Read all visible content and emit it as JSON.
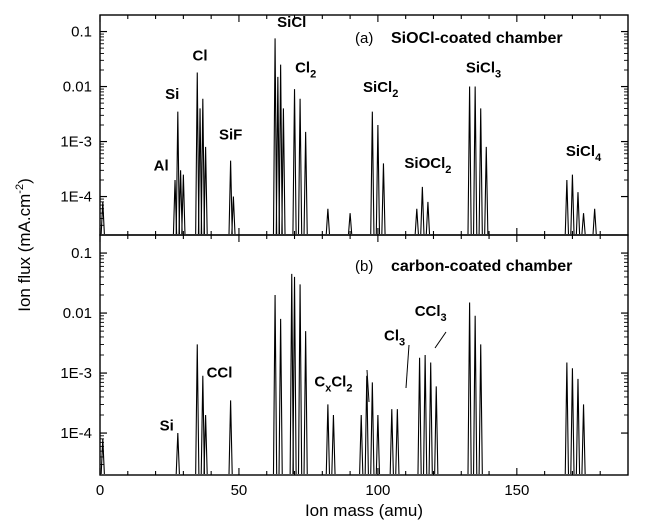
{
  "chart_data": [
    {
      "panel": "a",
      "type": "line",
      "title_prefix": "(a)",
      "title": "SiOCl-coated chamber",
      "xlabel": "Ion mass (amu)",
      "ylabel": "Ion flux (mA.cm-2)",
      "xlim": [
        0,
        190
      ],
      "ylim": [
        2e-05,
        0.2
      ],
      "yscale": "log",
      "y_ticks": [
        "0.1",
        "0.01",
        "1E-3",
        "1E-4"
      ],
      "peaks": [
        {
          "x": 1,
          "y": 8e-05
        },
        {
          "x": 27,
          "y": 0.0002
        },
        {
          "x": 28,
          "y": 0.0035
        },
        {
          "x": 29,
          "y": 0.0003
        },
        {
          "x": 30,
          "y": 0.00025
        },
        {
          "x": 35,
          "y": 0.018
        },
        {
          "x": 36,
          "y": 0.004
        },
        {
          "x": 37,
          "y": 0.006
        },
        {
          "x": 38,
          "y": 0.0008
        },
        {
          "x": 47,
          "y": 0.00045
        },
        {
          "x": 48,
          "y": 0.0001
        },
        {
          "x": 63,
          "y": 0.075
        },
        {
          "x": 64,
          "y": 0.015
        },
        {
          "x": 65,
          "y": 0.025
        },
        {
          "x": 66,
          "y": 0.004
        },
        {
          "x": 70,
          "y": 0.009
        },
        {
          "x": 72,
          "y": 0.006
        },
        {
          "x": 74,
          "y": 0.0015
        },
        {
          "x": 82,
          "y": 6e-05
        },
        {
          "x": 90,
          "y": 5e-05
        },
        {
          "x": 98,
          "y": 0.0035
        },
        {
          "x": 100,
          "y": 0.002
        },
        {
          "x": 102,
          "y": 0.0004
        },
        {
          "x": 114,
          "y": 6e-05
        },
        {
          "x": 116,
          "y": 0.00015
        },
        {
          "x": 118,
          "y": 8e-05
        },
        {
          "x": 133,
          "y": 0.01
        },
        {
          "x": 135,
          "y": 0.01
        },
        {
          "x": 137,
          "y": 0.004
        },
        {
          "x": 139,
          "y": 0.0008
        },
        {
          "x": 168,
          "y": 0.0002
        },
        {
          "x": 170,
          "y": 0.00025
        },
        {
          "x": 172,
          "y": 0.00012
        },
        {
          "x": 174,
          "y": 5e-05
        },
        {
          "x": 178,
          "y": 6e-05
        }
      ],
      "annotations": [
        {
          "text": "Al",
          "x": 22,
          "y": 0.0003
        },
        {
          "text": "Si",
          "x": 26,
          "y": 0.006
        },
        {
          "text": "Cl",
          "x": 36,
          "y": 0.03
        },
        {
          "text": "SiF",
          "x": 47,
          "y": 0.0011
        },
        {
          "text": "SiCl",
          "x": 69,
          "y": 0.12
        },
        {
          "text": "Cl",
          "sub": "2",
          "x": 74,
          "y": 0.018
        },
        {
          "text": "SiCl",
          "sub": "2",
          "x": 101,
          "y": 0.008
        },
        {
          "text": "SiOCl",
          "sub": "2",
          "x": 118,
          "y": 0.00033
        },
        {
          "text": "SiCl",
          "sub": "3",
          "x": 138,
          "y": 0.018
        },
        {
          "text": "SiCl",
          "sub": "4",
          "x": 174,
          "y": 0.00055
        }
      ]
    },
    {
      "panel": "b",
      "type": "line",
      "title_prefix": "(b)",
      "title": "carbon-coated chamber",
      "xlabel": "Ion mass (amu)",
      "ylabel": "Ion flux (mA.cm-2)",
      "xlim": [
        0,
        190
      ],
      "ylim": [
        2e-05,
        0.2
      ],
      "yscale": "log",
      "x_ticks": [
        "0",
        "50",
        "100",
        "150"
      ],
      "y_ticks": [
        "0.1",
        "0.01",
        "1E-3",
        "1E-4"
      ],
      "peaks": [
        {
          "x": 1,
          "y": 8e-05
        },
        {
          "x": 28,
          "y": 0.0001
        },
        {
          "x": 35,
          "y": 0.003
        },
        {
          "x": 37,
          "y": 0.0009
        },
        {
          "x": 38,
          "y": 0.0002
        },
        {
          "x": 47,
          "y": 0.00035
        },
        {
          "x": 63,
          "y": 0.02
        },
        {
          "x": 65,
          "y": 0.008
        },
        {
          "x": 69,
          "y": 0.045
        },
        {
          "x": 70,
          "y": 0.04
        },
        {
          "x": 72,
          "y": 0.03
        },
        {
          "x": 74,
          "y": 0.005
        },
        {
          "x": 82,
          "y": 0.0003
        },
        {
          "x": 84,
          "y": 0.0002
        },
        {
          "x": 94,
          "y": 0.0002
        },
        {
          "x": 96,
          "y": 0.0009
        },
        {
          "x": 98,
          "y": 0.0007
        },
        {
          "x": 100,
          "y": 0.0002
        },
        {
          "x": 105,
          "y": 0.00025
        },
        {
          "x": 107,
          "y": 0.00025
        },
        {
          "x": 115,
          "y": 0.0018
        },
        {
          "x": 117,
          "y": 0.002
        },
        {
          "x": 119,
          "y": 0.0015
        },
        {
          "x": 121,
          "y": 0.0006
        },
        {
          "x": 133,
          "y": 0.015
        },
        {
          "x": 135,
          "y": 0.009
        },
        {
          "x": 137,
          "y": 0.003
        },
        {
          "x": 168,
          "y": 0.0015
        },
        {
          "x": 170,
          "y": 0.0012
        },
        {
          "x": 172,
          "y": 0.0008
        },
        {
          "x": 174,
          "y": 0.0003
        }
      ],
      "annotations": [
        {
          "text": "Si",
          "x": 24,
          "y": 0.00011
        },
        {
          "text": "CCl",
          "x": 43,
          "y": 0.00085
        },
        {
          "text": "C",
          "sub": "x",
          "text2": "Cl",
          "sub2": "2",
          "x": 84,
          "y": 0.0006
        },
        {
          "text": "Cl",
          "sub": "3",
          "x": 106,
          "y": 0.0035
        },
        {
          "text": "CCl",
          "sub": "3",
          "x": 119,
          "y": 0.009
        }
      ]
    }
  ]
}
